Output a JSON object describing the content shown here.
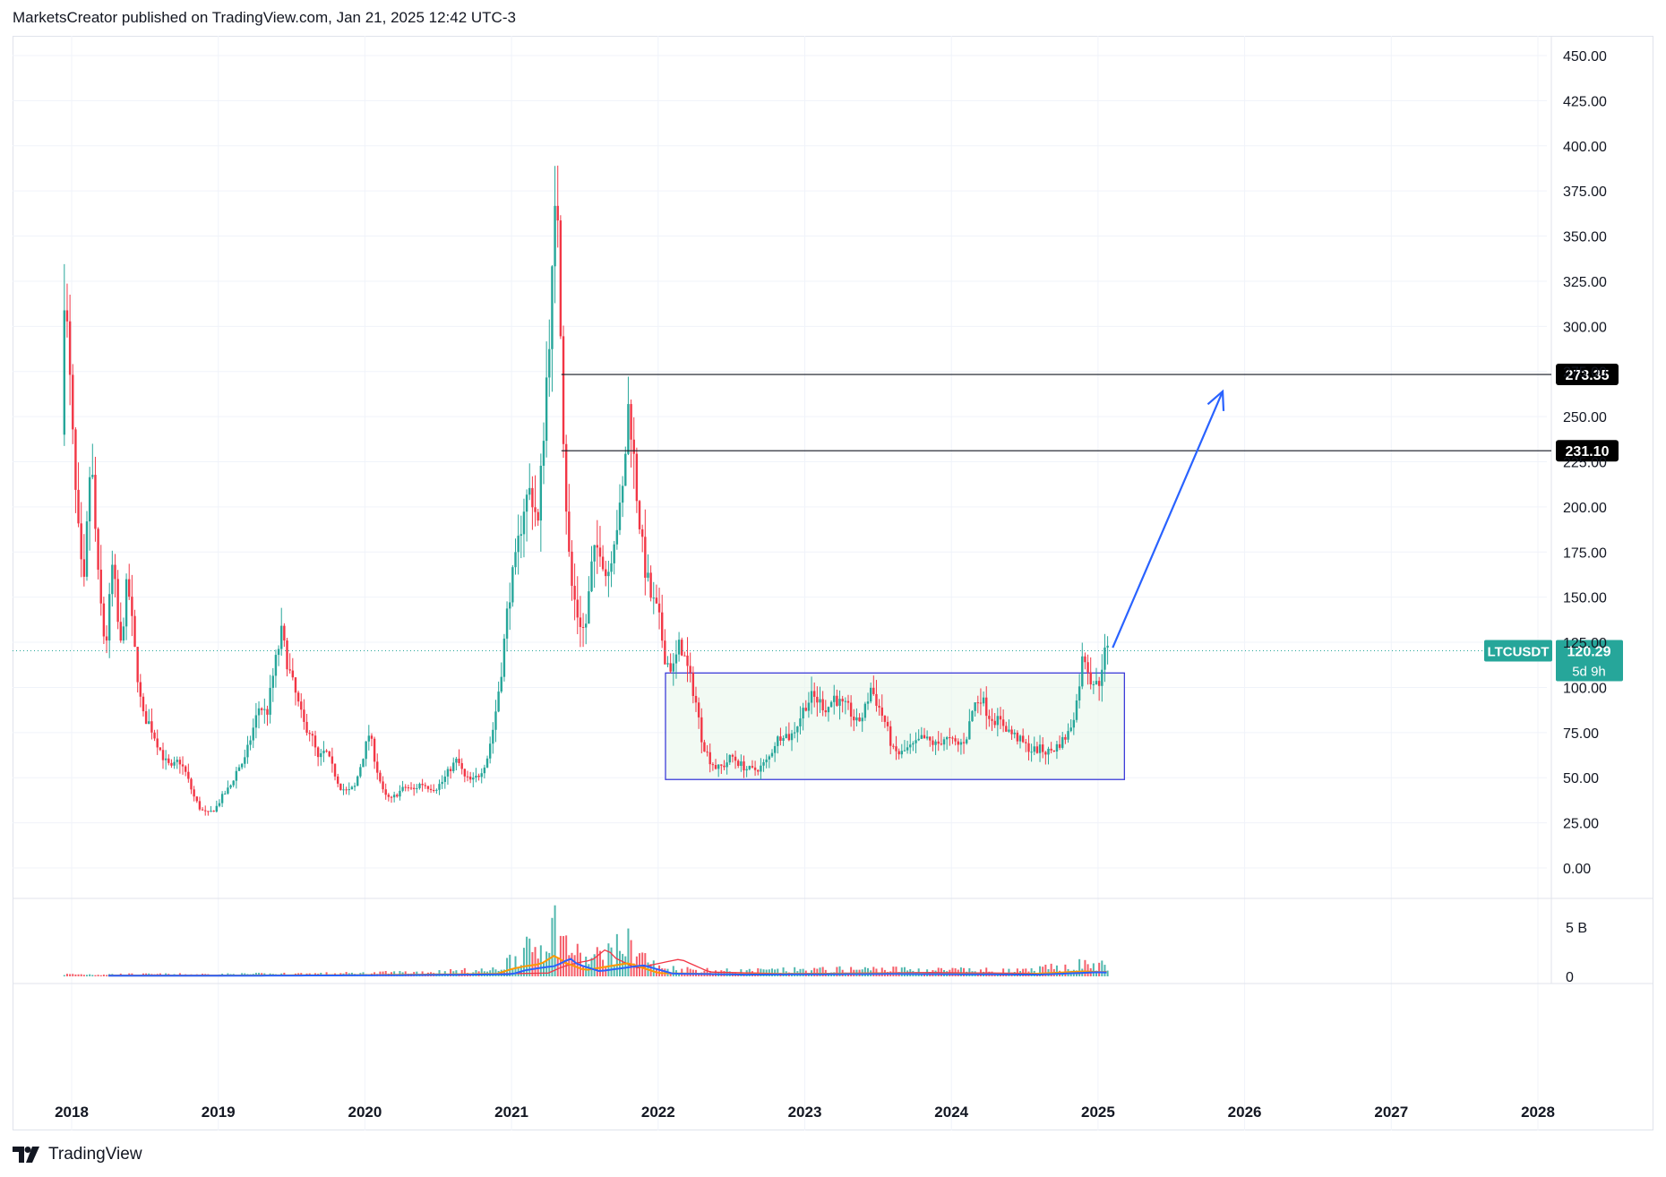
{
  "header": {
    "text": "MarketsCreator published on TradingView.com, Jan 21, 2025 12:42 UTC-3"
  },
  "footer": {
    "brand": "TradingView"
  },
  "colors": {
    "up": "#26a69a",
    "down": "#f23645",
    "arrow": "#2962ff",
    "box": "#3d3dd9",
    "box_fill": "#e8f5e9",
    "ma1": "#f23645",
    "ma2": "#ff9800",
    "ma3": "#2962ff"
  },
  "chart_data": {
    "type": "candlestick",
    "symbol": "LTCUSDT",
    "interval": "weekly",
    "y_ticks": [
      "450.00",
      "425.00",
      "400.00",
      "375.00",
      "350.00",
      "325.00",
      "300.00",
      "275.00",
      "250.00",
      "225.00",
      "200.00",
      "175.00",
      "150.00",
      "125.00",
      "100.00",
      "75.00",
      "50.00",
      "25.00",
      "0.00"
    ],
    "y_tick_values": [
      450,
      425,
      400,
      375,
      350,
      325,
      300,
      275,
      250,
      225,
      200,
      175,
      150,
      125,
      100,
      75,
      50,
      25,
      0
    ],
    "x_ticks": [
      "2018",
      "2019",
      "2020",
      "2021",
      "2022",
      "2023",
      "2024",
      "2025",
      "2026",
      "2027",
      "2028"
    ],
    "x_tick_values": [
      2018,
      2019,
      2020,
      2021,
      2022,
      2023,
      2024,
      2025,
      2026,
      2027,
      2028
    ],
    "volume_ticks": [
      "5 B",
      "0"
    ],
    "volume_tick_values": [
      5,
      0
    ],
    "last_price": {
      "label": "LTCUSDT",
      "value": "120.29",
      "countdown": "5d 9h",
      "price": 120.29
    },
    "levels": [
      {
        "label": "273.35",
        "price": 273.35
      },
      {
        "label": "231.10",
        "price": 231.1
      }
    ],
    "range_box": {
      "x_start": 2022.05,
      "x_end": 2025.18,
      "price_low": 49,
      "price_high": 108
    },
    "projection_arrow": {
      "from": [
        2025.1,
        122
      ],
      "to": [
        2025.85,
        264
      ]
    },
    "price_path": [
      [
        2017.95,
        240
      ],
      [
        2017.97,
        325
      ],
      [
        2018.0,
        280
      ],
      [
        2018.05,
        200
      ],
      [
        2018.1,
        150
      ],
      [
        2018.15,
        230
      ],
      [
        2018.2,
        160
      ],
      [
        2018.25,
        120
      ],
      [
        2018.3,
        170
      ],
      [
        2018.35,
        120
      ],
      [
        2018.4,
        160
      ],
      [
        2018.45,
        120
      ],
      [
        2018.5,
        85
      ],
      [
        2018.55,
        80
      ],
      [
        2018.6,
        70
      ],
      [
        2018.65,
        60
      ],
      [
        2018.7,
        55
      ],
      [
        2018.75,
        60
      ],
      [
        2018.8,
        52
      ],
      [
        2018.85,
        40
      ],
      [
        2018.9,
        32
      ],
      [
        2018.95,
        30
      ],
      [
        2019.0,
        33
      ],
      [
        2019.05,
        40
      ],
      [
        2019.1,
        45
      ],
      [
        2019.15,
        55
      ],
      [
        2019.2,
        60
      ],
      [
        2019.25,
        75
      ],
      [
        2019.3,
        90
      ],
      [
        2019.35,
        85
      ],
      [
        2019.4,
        110
      ],
      [
        2019.45,
        130
      ],
      [
        2019.5,
        110
      ],
      [
        2019.55,
        95
      ],
      [
        2019.6,
        80
      ],
      [
        2019.65,
        75
      ],
      [
        2019.7,
        60
      ],
      [
        2019.75,
        65
      ],
      [
        2019.8,
        55
      ],
      [
        2019.85,
        45
      ],
      [
        2019.9,
        42
      ],
      [
        2019.95,
        45
      ],
      [
        2020.0,
        60
      ],
      [
        2020.05,
        75
      ],
      [
        2020.1,
        55
      ],
      [
        2020.15,
        40
      ],
      [
        2020.2,
        38
      ],
      [
        2020.25,
        42
      ],
      [
        2020.3,
        45
      ],
      [
        2020.35,
        43
      ],
      [
        2020.4,
        47
      ],
      [
        2020.45,
        45
      ],
      [
        2020.5,
        44
      ],
      [
        2020.55,
        48
      ],
      [
        2020.6,
        55
      ],
      [
        2020.65,
        60
      ],
      [
        2020.7,
        50
      ],
      [
        2020.75,
        48
      ],
      [
        2020.8,
        52
      ],
      [
        2020.85,
        60
      ],
      [
        2020.9,
        80
      ],
      [
        2020.95,
        110
      ],
      [
        2021.0,
        150
      ],
      [
        2021.05,
        170
      ],
      [
        2021.1,
        200
      ],
      [
        2021.15,
        210
      ],
      [
        2021.2,
        190
      ],
      [
        2021.25,
        260
      ],
      [
        2021.3,
        330
      ],
      [
        2021.33,
        380
      ],
      [
        2021.38,
        220
      ],
      [
        2021.42,
        160
      ],
      [
        2021.47,
        140
      ],
      [
        2021.52,
        130
      ],
      [
        2021.57,
        170
      ],
      [
        2021.62,
        180
      ],
      [
        2021.67,
        160
      ],
      [
        2021.72,
        185
      ],
      [
        2021.77,
        200
      ],
      [
        2021.82,
        260
      ],
      [
        2021.87,
        210
      ],
      [
        2021.92,
        170
      ],
      [
        2021.97,
        150
      ],
      [
        2022.02,
        140
      ],
      [
        2022.07,
        115
      ],
      [
        2022.12,
        110
      ],
      [
        2022.17,
        125
      ],
      [
        2022.22,
        110
      ],
      [
        2022.27,
        95
      ],
      [
        2022.32,
        70
      ],
      [
        2022.37,
        60
      ],
      [
        2022.42,
        55
      ],
      [
        2022.47,
        57
      ],
      [
        2022.52,
        62
      ],
      [
        2022.57,
        58
      ],
      [
        2022.62,
        55
      ],
      [
        2022.67,
        54
      ],
      [
        2022.72,
        56
      ],
      [
        2022.77,
        60
      ],
      [
        2022.82,
        70
      ],
      [
        2022.87,
        75
      ],
      [
        2022.92,
        72
      ],
      [
        2022.97,
        80
      ],
      [
        2023.02,
        90
      ],
      [
        2023.07,
        95
      ],
      [
        2023.12,
        92
      ],
      [
        2023.17,
        88
      ],
      [
        2023.22,
        95
      ],
      [
        2023.27,
        90
      ],
      [
        2023.32,
        88
      ],
      [
        2023.37,
        80
      ],
      [
        2023.42,
        85
      ],
      [
        2023.47,
        100
      ],
      [
        2023.52,
        90
      ],
      [
        2023.57,
        80
      ],
      [
        2023.62,
        65
      ],
      [
        2023.67,
        63
      ],
      [
        2023.72,
        66
      ],
      [
        2023.77,
        68
      ],
      [
        2023.82,
        72
      ],
      [
        2023.87,
        70
      ],
      [
        2023.92,
        68
      ],
      [
        2023.97,
        72
      ],
      [
        2024.02,
        70
      ],
      [
        2024.07,
        68
      ],
      [
        2024.12,
        72
      ],
      [
        2024.17,
        90
      ],
      [
        2024.22,
        95
      ],
      [
        2024.27,
        85
      ],
      [
        2024.32,
        82
      ],
      [
        2024.37,
        80
      ],
      [
        2024.42,
        75
      ],
      [
        2024.47,
        72
      ],
      [
        2024.52,
        68
      ],
      [
        2024.57,
        65
      ],
      [
        2024.62,
        66
      ],
      [
        2024.67,
        64
      ],
      [
        2024.72,
        66
      ],
      [
        2024.77,
        70
      ],
      [
        2024.82,
        75
      ],
      [
        2024.87,
        90
      ],
      [
        2024.92,
        120
      ],
      [
        2024.97,
        105
      ],
      [
        2025.02,
        100
      ],
      [
        2025.05,
        115
      ],
      [
        2025.07,
        120
      ]
    ],
    "volume_path": [
      [
        2018.0,
        0.2
      ],
      [
        2019.0,
        0.2
      ],
      [
        2020.0,
        0.3
      ],
      [
        2020.9,
        0.6
      ],
      [
        2021.0,
        1.8
      ],
      [
        2021.1,
        2.5
      ],
      [
        2021.2,
        3.0
      ],
      [
        2021.3,
        5.2
      ],
      [
        2021.35,
        3.5
      ],
      [
        2021.5,
        1.5
      ],
      [
        2021.8,
        3.2
      ],
      [
        2022.0,
        0.8
      ],
      [
        2022.5,
        0.5
      ],
      [
        2023.0,
        0.6
      ],
      [
        2023.5,
        0.7
      ],
      [
        2024.0,
        0.6
      ],
      [
        2024.5,
        0.5
      ],
      [
        2024.9,
        1.2
      ],
      [
        2025.05,
        1.0
      ]
    ]
  }
}
